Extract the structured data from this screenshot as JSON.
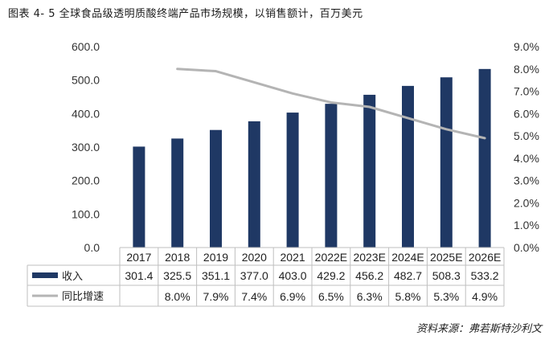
{
  "title": "图表 4- 5  全球食品级透明质酸终端产品市场规模，以销售额计，百万美元",
  "source": "资料来源：弗若斯特沙利文",
  "chart_data": {
    "type": "bar",
    "categories": [
      "2017",
      "2018",
      "2019",
      "2020",
      "2021",
      "2022E",
      "2023E",
      "2024E",
      "2025E",
      "2026E"
    ],
    "series": [
      {
        "name": "收入",
        "type": "bar",
        "axis": "left",
        "color": "#1f3864",
        "values": [
          301.4,
          325.5,
          351.1,
          377.0,
          403.0,
          429.2,
          456.2,
          482.7,
          508.3,
          533.2
        ],
        "labels": [
          "301.4",
          "325.5",
          "351.1",
          "377.0",
          "403.0",
          "429.2",
          "456.2",
          "482.7",
          "508.3",
          "533.2"
        ]
      },
      {
        "name": "同比增速",
        "type": "line",
        "axis": "right",
        "color": "#b4b4b4",
        "values": [
          null,
          8.0,
          7.9,
          7.4,
          6.9,
          6.5,
          6.3,
          5.8,
          5.3,
          4.9
        ],
        "labels": [
          "",
          "8.0%",
          "7.9%",
          "7.4%",
          "6.9%",
          "6.5%",
          "6.3%",
          "5.8%",
          "5.3%",
          "4.9%"
        ]
      }
    ],
    "y_left": {
      "range": [
        0,
        600
      ],
      "ticks": [
        "0.0",
        "100.0",
        "200.0",
        "300.0",
        "400.0",
        "500.0",
        "600.0"
      ]
    },
    "y_right": {
      "range": [
        0,
        9
      ],
      "ticks": [
        "0.0%",
        "1.0%",
        "2.0%",
        "3.0%",
        "4.0%",
        "5.0%",
        "6.0%",
        "7.0%",
        "8.0%",
        "9.0%"
      ]
    },
    "legend": "data-table",
    "grid": false
  }
}
